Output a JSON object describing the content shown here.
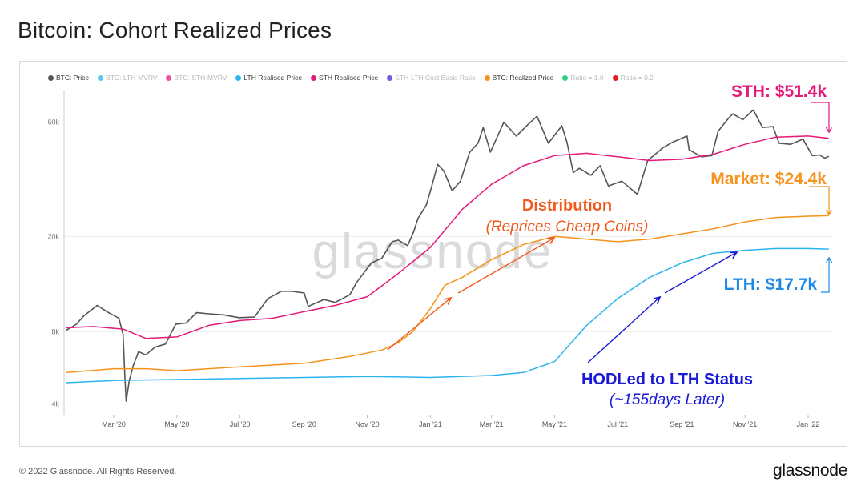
{
  "title": "Bitcoin: Cohort Realized Prices",
  "footer": {
    "copyright": "© 2022 Glassnode. All Rights Reserved.",
    "brand": "glassnode"
  },
  "watermark": "glassnode",
  "legend": [
    {
      "label": "BTC: Price",
      "color": "#555555",
      "active": true
    },
    {
      "label": "BTC: LTH-MVRV",
      "color": "#5ec8f2",
      "active": false
    },
    {
      "label": "BTC: STH-MVRV",
      "color": "#e8559a",
      "active": false
    },
    {
      "label": "LTH Realised Price",
      "color": "#2bb4ef",
      "active": true
    },
    {
      "label": "STH Realised Price",
      "color": "#e4197a",
      "active": true
    },
    {
      "label": "STH-LTH Cost Basis Ratio",
      "color": "#6a5fe0",
      "active": false
    },
    {
      "label": "BTC: Realized Price",
      "color": "#f7931a",
      "active": true
    },
    {
      "label": "Ratio = 1.0",
      "color": "#2fd07a",
      "active": false
    },
    {
      "label": "Ratio = 0.2",
      "color": "#e01b1b",
      "active": false
    }
  ],
  "annotations": {
    "sth": "STH: $51.4k",
    "market": "Market: $24.4k",
    "lth": "LTH: $17.7k",
    "distribution_title": "Distribution",
    "distribution_sub": "(Reprices Cheap Coins)",
    "hodl_title": "HODLed to LTH Status",
    "hodl_sub": "(~155days Later)"
  },
  "chart_data": {
    "type": "line",
    "title": "Bitcoin: Cohort Realized Prices",
    "y_scale": "log",
    "ylim": [
      3600,
      82000
    ],
    "y_ticks": [
      4000,
      8000,
      20000,
      60000
    ],
    "y_tick_labels": [
      "4k",
      "8k",
      "20k",
      "60k"
    ],
    "xlim": [
      "2020-01-13",
      "2022-01-25"
    ],
    "x_ticks": [
      "2020-03-01",
      "2020-05-01",
      "2020-07-01",
      "2020-09-01",
      "2020-11-01",
      "2021-01-01",
      "2021-03-01",
      "2021-05-01",
      "2021-07-01",
      "2021-09-01",
      "2021-11-01",
      "2022-01-01"
    ],
    "x_tick_labels": [
      "Mar '20",
      "May '20",
      "Jul '20",
      "Sep '20",
      "Nov '20",
      "Jan '21",
      "Mar '21",
      "May '21",
      "Jul '21",
      "Sep '21",
      "Nov '21",
      "Jan '22"
    ],
    "series": [
      {
        "name": "BTC: Price",
        "color": "#555555",
        "points": [
          [
            "2020-01-15",
            8100
          ],
          [
            "2020-01-25",
            8600
          ],
          [
            "2020-02-01",
            9300
          ],
          [
            "2020-02-14",
            10300
          ],
          [
            "2020-02-25",
            9600
          ],
          [
            "2020-03-06",
            9100
          ],
          [
            "2020-03-10",
            7800
          ],
          [
            "2020-03-12",
            4950
          ],
          [
            "2020-03-13",
            4100
          ],
          [
            "2020-03-16",
            5000
          ],
          [
            "2020-03-20",
            5800
          ],
          [
            "2020-03-25",
            6600
          ],
          [
            "2020-04-01",
            6400
          ],
          [
            "2020-04-10",
            6900
          ],
          [
            "2020-04-20",
            7100
          ],
          [
            "2020-04-30",
            8600
          ],
          [
            "2020-05-10",
            8700
          ],
          [
            "2020-05-20",
            9600
          ],
          [
            "2020-06-01",
            9500
          ],
          [
            "2020-06-15",
            9400
          ],
          [
            "2020-06-30",
            9150
          ],
          [
            "2020-07-15",
            9200
          ],
          [
            "2020-07-28",
            11000
          ],
          [
            "2020-08-10",
            11800
          ],
          [
            "2020-08-20",
            11800
          ],
          [
            "2020-09-01",
            11600
          ],
          [
            "2020-09-05",
            10200
          ],
          [
            "2020-09-20",
            10900
          ],
          [
            "2020-10-01",
            10600
          ],
          [
            "2020-10-15",
            11400
          ],
          [
            "2020-10-22",
            12900
          ],
          [
            "2020-11-05",
            15500
          ],
          [
            "2020-11-15",
            16200
          ],
          [
            "2020-11-25",
            19000
          ],
          [
            "2020-12-01",
            19300
          ],
          [
            "2020-12-10",
            18300
          ],
          [
            "2020-12-16",
            21000
          ],
          [
            "2020-12-20",
            23800
          ],
          [
            "2020-12-28",
            27000
          ],
          [
            "2021-01-02",
            32000
          ],
          [
            "2021-01-08",
            40000
          ],
          [
            "2021-01-14",
            37500
          ],
          [
            "2021-01-22",
            31000
          ],
          [
            "2021-01-30",
            34000
          ],
          [
            "2021-02-08",
            45000
          ],
          [
            "2021-02-16",
            49000
          ],
          [
            "2021-02-21",
            57000
          ],
          [
            "2021-02-28",
            45000
          ],
          [
            "2021-03-13",
            60000
          ],
          [
            "2021-03-25",
            52500
          ],
          [
            "2021-04-05",
            58500
          ],
          [
            "2021-04-14",
            63500
          ],
          [
            "2021-04-25",
            49000
          ],
          [
            "2021-05-08",
            58000
          ],
          [
            "2021-05-13",
            49500
          ],
          [
            "2021-05-19",
            37000
          ],
          [
            "2021-05-25",
            38500
          ],
          [
            "2021-06-05",
            36000
          ],
          [
            "2021-06-14",
            39500
          ],
          [
            "2021-06-22",
            32500
          ],
          [
            "2021-07-05",
            34000
          ],
          [
            "2021-07-20",
            30000
          ],
          [
            "2021-07-30",
            41500
          ],
          [
            "2021-08-14",
            47000
          ],
          [
            "2021-08-23",
            49500
          ],
          [
            "2021-09-06",
            52500
          ],
          [
            "2021-09-08",
            46000
          ],
          [
            "2021-09-20",
            43000
          ],
          [
            "2021-09-30",
            43500
          ],
          [
            "2021-10-06",
            55000
          ],
          [
            "2021-10-15",
            61500
          ],
          [
            "2021-10-20",
            65000
          ],
          [
            "2021-10-30",
            61500
          ],
          [
            "2021-11-09",
            67500
          ],
          [
            "2021-11-18",
            57000
          ],
          [
            "2021-11-28",
            57500
          ],
          [
            "2021-12-04",
            49000
          ],
          [
            "2021-12-15",
            48500
          ],
          [
            "2021-12-27",
            51000
          ],
          [
            "2022-01-05",
            43500
          ],
          [
            "2022-01-12",
            43800
          ],
          [
            "2022-01-17",
            42500
          ],
          [
            "2022-01-21",
            43200
          ]
        ]
      },
      {
        "name": "STH Realised Price",
        "color": "#e4197a",
        "points": [
          [
            "2020-01-15",
            8300
          ],
          [
            "2020-02-10",
            8400
          ],
          [
            "2020-03-10",
            8200
          ],
          [
            "2020-04-01",
            7500
          ],
          [
            "2020-05-01",
            7600
          ],
          [
            "2020-06-01",
            8500
          ],
          [
            "2020-07-01",
            8900
          ],
          [
            "2020-08-01",
            9100
          ],
          [
            "2020-09-01",
            9700
          ],
          [
            "2020-10-01",
            10300
          ],
          [
            "2020-11-01",
            11200
          ],
          [
            "2020-12-01",
            14000
          ],
          [
            "2021-01-01",
            18000
          ],
          [
            "2021-02-01",
            26000
          ],
          [
            "2021-03-01",
            33000
          ],
          [
            "2021-04-01",
            39500
          ],
          [
            "2021-05-01",
            43500
          ],
          [
            "2021-06-01",
            44500
          ],
          [
            "2021-07-01",
            43000
          ],
          [
            "2021-08-01",
            41500
          ],
          [
            "2021-09-01",
            42000
          ],
          [
            "2021-10-01",
            44000
          ],
          [
            "2021-11-01",
            48500
          ],
          [
            "2021-12-01",
            52000
          ],
          [
            "2022-01-01",
            52500
          ],
          [
            "2022-01-21",
            51400
          ]
        ]
      },
      {
        "name": "BTC: Realized Price",
        "color": "#f7931a",
        "points": [
          [
            "2020-01-15",
            5400
          ],
          [
            "2020-03-01",
            5600
          ],
          [
            "2020-04-01",
            5600
          ],
          [
            "2020-05-01",
            5500
          ],
          [
            "2020-07-01",
            5700
          ],
          [
            "2020-09-01",
            5900
          ],
          [
            "2020-10-15",
            6300
          ],
          [
            "2020-11-15",
            6700
          ],
          [
            "2020-12-01",
            7200
          ],
          [
            "2020-12-15",
            8000
          ],
          [
            "2021-01-01",
            10000
          ],
          [
            "2021-01-15",
            12500
          ],
          [
            "2021-02-01",
            13500
          ],
          [
            "2021-03-01",
            16000
          ],
          [
            "2021-04-01",
            18500
          ],
          [
            "2021-05-01",
            20000
          ],
          [
            "2021-06-01",
            19500
          ],
          [
            "2021-07-01",
            19000
          ],
          [
            "2021-08-01",
            19500
          ],
          [
            "2021-09-01",
            20500
          ],
          [
            "2021-10-01",
            21500
          ],
          [
            "2021-11-01",
            23000
          ],
          [
            "2021-12-01",
            24000
          ],
          [
            "2022-01-01",
            24300
          ],
          [
            "2022-01-21",
            24400
          ]
        ]
      },
      {
        "name": "LTH Realised Price",
        "color": "#2bb4ef",
        "points": [
          [
            "2020-01-15",
            4900
          ],
          [
            "2020-03-01",
            5000
          ],
          [
            "2020-05-01",
            5050
          ],
          [
            "2020-07-01",
            5100
          ],
          [
            "2020-09-01",
            5150
          ],
          [
            "2020-11-01",
            5200
          ],
          [
            "2021-01-01",
            5150
          ],
          [
            "2021-03-01",
            5250
          ],
          [
            "2021-04-01",
            5400
          ],
          [
            "2021-05-01",
            6000
          ],
          [
            "2021-06-01",
            8500
          ],
          [
            "2021-07-01",
            11000
          ],
          [
            "2021-08-01",
            13500
          ],
          [
            "2021-09-01",
            15500
          ],
          [
            "2021-10-01",
            17000
          ],
          [
            "2021-11-01",
            17500
          ],
          [
            "2021-12-01",
            17800
          ],
          [
            "2022-01-01",
            17800
          ],
          [
            "2022-01-21",
            17700
          ]
        ]
      }
    ]
  }
}
